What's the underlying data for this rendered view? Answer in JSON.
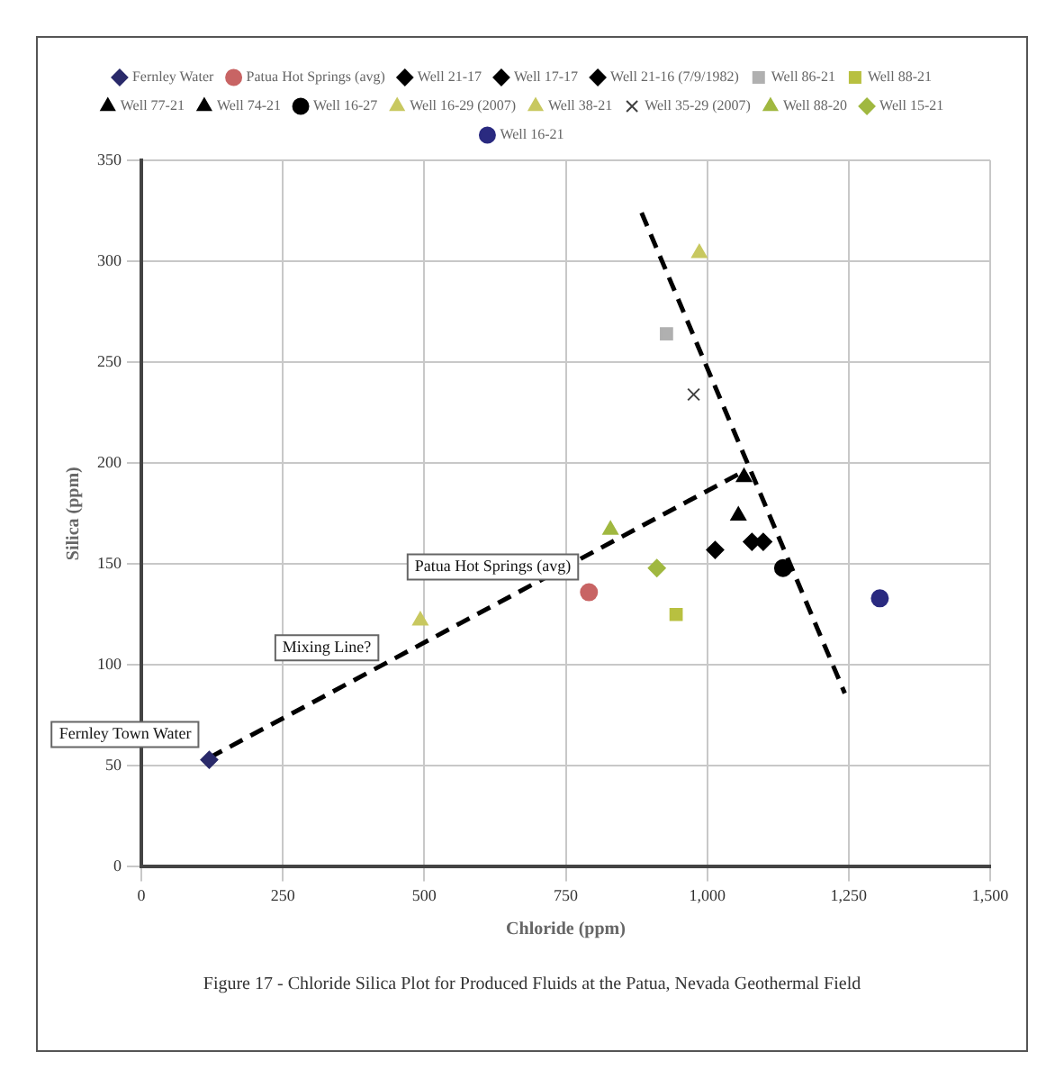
{
  "chart_data": {
    "type": "scatter",
    "xlabel": "Chloride (ppm)",
    "ylabel": "Silica (ppm)",
    "xlim": [
      0,
      1500
    ],
    "xticks": [
      0,
      250,
      500,
      750,
      {
        "value": 1000,
        "label": "1,000"
      },
      {
        "value": 1250,
        "label": "1,250"
      },
      {
        "value": 1500,
        "label": "1,500"
      }
    ],
    "ylim": [
      0,
      350
    ],
    "yticks": [
      0,
      50,
      100,
      150,
      200,
      250,
      300,
      350
    ],
    "grid": true,
    "legend": "top",
    "series": [
      {
        "name": "Fernley Water",
        "color": "#2a2a6a",
        "marker": "diamond",
        "x": [
          120
        ],
        "values": [
          53
        ]
      },
      {
        "name": "Patua Hot Springs (avg)",
        "color": "#c86464",
        "marker": "circle",
        "x": [
          791
        ],
        "values": [
          136
        ]
      },
      {
        "name": "Well 21-17",
        "color": "#000000",
        "marker": "diamond",
        "x": [
          1014
        ],
        "values": [
          157
        ]
      },
      {
        "name": "Well 17-17",
        "color": "#000000",
        "marker": "diamond",
        "x": [
          1079
        ],
        "values": [
          161
        ]
      },
      {
        "name": "Well 21-16 (7/9/1982)",
        "color": "#000000",
        "marker": "diamond",
        "x": [
          1099
        ],
        "values": [
          161
        ]
      },
      {
        "name": "Well 86-21",
        "color": "#b0b0b0",
        "marker": "square",
        "x": [
          928
        ],
        "values": [
          264
        ]
      },
      {
        "name": "Well 88-21",
        "color": "#b8c040",
        "marker": "square",
        "x": [
          945
        ],
        "values": [
          125
        ]
      },
      {
        "name": "Well 77-21",
        "color": "#000000",
        "marker": "triangle",
        "x": [
          1065
        ],
        "values": [
          193
        ]
      },
      {
        "name": "Well 74-21",
        "color": "#000000",
        "marker": "triangle",
        "x": [
          1055
        ],
        "values": [
          174
        ]
      },
      {
        "name": "Well 16-27",
        "color": "#000000",
        "marker": "circle",
        "x": [
          1134
        ],
        "values": [
          148
        ]
      },
      {
        "name": "Well 16-29 (2007)",
        "color": "#c8c860",
        "marker": "triangle",
        "x": [
          986
        ],
        "values": [
          304
        ]
      },
      {
        "name": "Well 38-21",
        "color": "#c8c860",
        "marker": "triangle",
        "x": [
          493
        ],
        "values": [
          122
        ]
      },
      {
        "name": "Well 35-29 (2007)",
        "color": "#404040",
        "marker": "cross",
        "x": [
          976
        ],
        "values": [
          234
        ]
      },
      {
        "name": "Well 88-20",
        "color": "#a0b840",
        "marker": "triangle",
        "x": [
          829
        ],
        "values": [
          167
        ]
      },
      {
        "name": "Well 15-21",
        "color": "#a0b840",
        "marker": "diamond",
        "x": [
          911
        ],
        "values": [
          148
        ]
      },
      {
        "name": "Well 16-21",
        "color": "#2a2a80",
        "marker": "circle",
        "x": [
          1305
        ],
        "values": [
          133
        ]
      },
      {
        "type": "line",
        "color": "#000000",
        "marker": "none",
        "line_style": "dashed",
        "x": [
          120,
          1065
        ],
        "values": [
          54,
          196
        ]
      },
      {
        "type": "line",
        "color": "#000000",
        "marker": "none",
        "line_style": "dashed",
        "x": [
          884,
          1243
        ],
        "values": [
          324,
          86
        ]
      }
    ],
    "annotations": [
      {
        "text": "Fernley Town Water",
        "x": 120,
        "y": 53
      },
      {
        "text": "Patua Hot Springs (avg)",
        "x": 791,
        "y": 136
      },
      {
        "text": "Mixing Line?",
        "x": 438,
        "y": 96
      },
      "Figure 17 - Chloride Silica Plot for Produced Fluids at the Patua, Nevada Geothermal Field"
    ]
  }
}
